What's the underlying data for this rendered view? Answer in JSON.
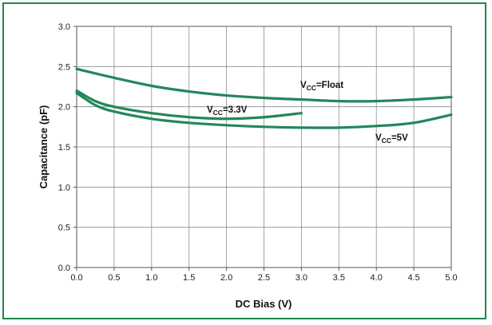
{
  "chart_data": {
    "type": "line",
    "xlabel": "DC Bias (V)",
    "ylabel": "Capacitance (pF)",
    "xlim": [
      0,
      5
    ],
    "ylim": [
      0,
      3
    ],
    "xticks": [
      "0.0",
      "0.5",
      "1.0",
      "1.5",
      "2.0",
      "2.5",
      "3.0",
      "3.5",
      "4.0",
      "4.5",
      "5.0"
    ],
    "yticks": [
      "0.0",
      "0.5",
      "1.0",
      "1.5",
      "2.0",
      "2.5",
      "3.0"
    ],
    "grid": true,
    "line_color": "#22875a",
    "frame_color": "#1b8a4c",
    "series": [
      {
        "id": "float",
        "label_main": "V",
        "label_sub": "CC",
        "label_rest": "=Float",
        "x": [
          0,
          0.5,
          1.0,
          1.5,
          2.0,
          2.5,
          3.0,
          3.5,
          4.0,
          4.5,
          5.0
        ],
        "y": [
          2.47,
          2.36,
          2.26,
          2.19,
          2.14,
          2.11,
          2.09,
          2.07,
          2.07,
          2.09,
          2.12
        ]
      },
      {
        "id": "v33",
        "label_main": "V",
        "label_sub": "CC",
        "label_rest": "=3.3V",
        "x": [
          0,
          0.25,
          0.5,
          1.0,
          1.5,
          2.0,
          2.5,
          3.0
        ],
        "y": [
          2.2,
          2.07,
          2.0,
          1.92,
          1.87,
          1.85,
          1.87,
          1.92
        ]
      },
      {
        "id": "v5",
        "label_main": "V",
        "label_sub": "CC",
        "label_rest": "=5V",
        "x": [
          0,
          0.25,
          0.5,
          1.0,
          1.5,
          2.0,
          2.5,
          3.0,
          3.5,
          4.0,
          4.5,
          5.0
        ],
        "y": [
          2.17,
          2.02,
          1.94,
          1.85,
          1.8,
          1.77,
          1.75,
          1.74,
          1.74,
          1.76,
          1.8,
          1.9
        ]
      }
    ]
  }
}
